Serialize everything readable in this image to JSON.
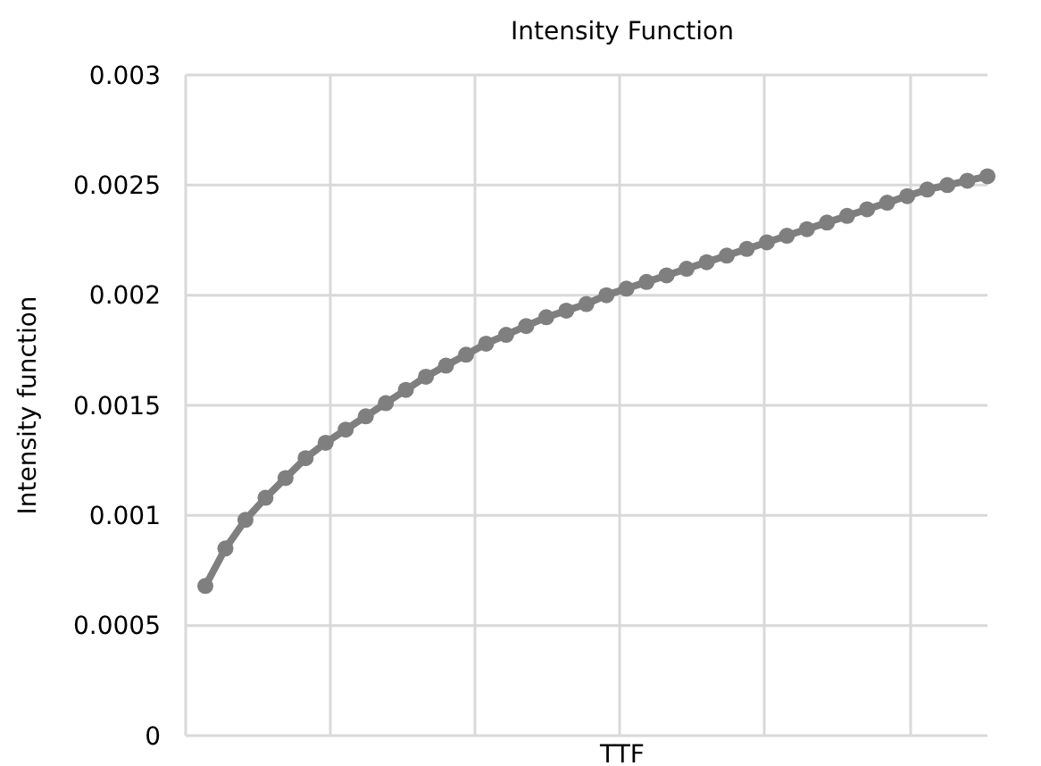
{
  "chart_data": {
    "type": "line",
    "title": "Intensity Function",
    "xlabel": "TTF",
    "ylabel": "Intensity function",
    "categories": [
      null,
      null,
      null,
      null,
      null,
      null,
      null,
      null,
      null,
      null,
      null,
      null,
      null,
      null,
      null,
      null,
      null,
      null,
      null,
      null,
      null,
      null,
      null,
      null,
      null,
      null,
      null,
      null,
      null,
      null,
      null,
      null,
      null,
      null,
      null,
      null,
      null,
      null,
      null,
      null
    ],
    "series": [
      {
        "color": "#7f7f7f",
        "values": [
          0.00068,
          0.00085,
          0.00098,
          0.00108,
          0.00117,
          0.00126,
          0.00133,
          0.00139,
          0.00145,
          0.00151,
          0.00157,
          0.00163,
          0.00168,
          0.00173,
          0.00178,
          0.00182,
          0.00186,
          0.0019,
          0.00193,
          0.00196,
          0.002,
          0.00203,
          0.00206,
          0.00209,
          0.00212,
          0.00215,
          0.00218,
          0.00221,
          0.00224,
          0.00227,
          0.0023,
          0.00233,
          0.00236,
          0.00239,
          0.00242,
          0.00245,
          0.00248,
          0.0025,
          0.00252,
          0.00254
        ]
      }
    ],
    "ylim": [
      0,
      0.003
    ],
    "yticks": [
      0,
      0.0005,
      0.001,
      0.0015,
      0.002,
      0.0025,
      0.003
    ],
    "grid": true,
    "marker": "circle",
    "line_style": "solid"
  }
}
